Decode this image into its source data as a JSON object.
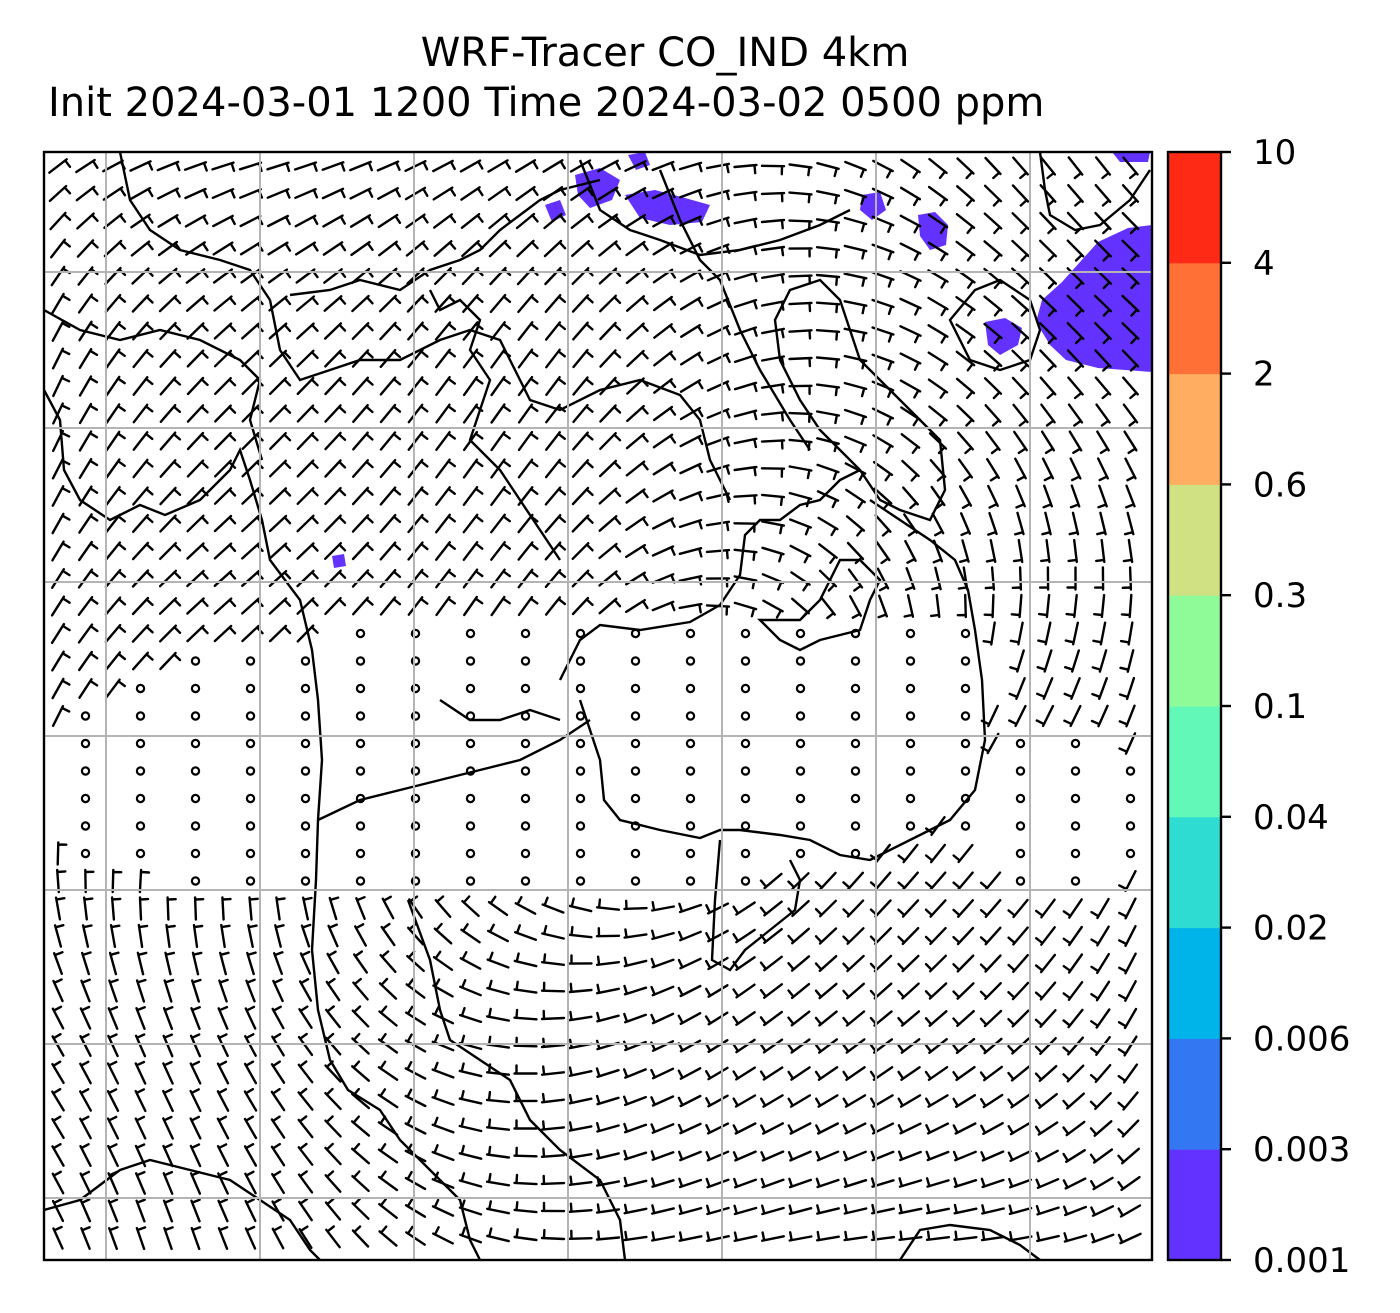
{
  "title_line1": "WRF-Tracer CO_IND 4km",
  "title_line2": "Init 2024-03-01 1200 Time 2024-03-02 0500 ppm",
  "colorbar": {
    "levels": [
      "0.001",
      "0.003",
      "0.006",
      "0.02",
      "0.04",
      "0.1",
      "0.3",
      "0.6",
      "2",
      "4",
      "10"
    ],
    "colors": [
      "#6432ff",
      "#3377f2",
      "#00b4ea",
      "#2fdcd2",
      "#62f9b8",
      "#8efa98",
      "#cfe183",
      "#ffad60",
      "#ff7036",
      "#ff2a15"
    ]
  },
  "map": {
    "background": "#ffffff",
    "gridlines": true,
    "grid_color": "#b4b4b4",
    "tracer_color": "#6432ff",
    "content": [
      "coastlines",
      "country-borders",
      "wind-barbs",
      "tracer-concentration"
    ]
  }
}
